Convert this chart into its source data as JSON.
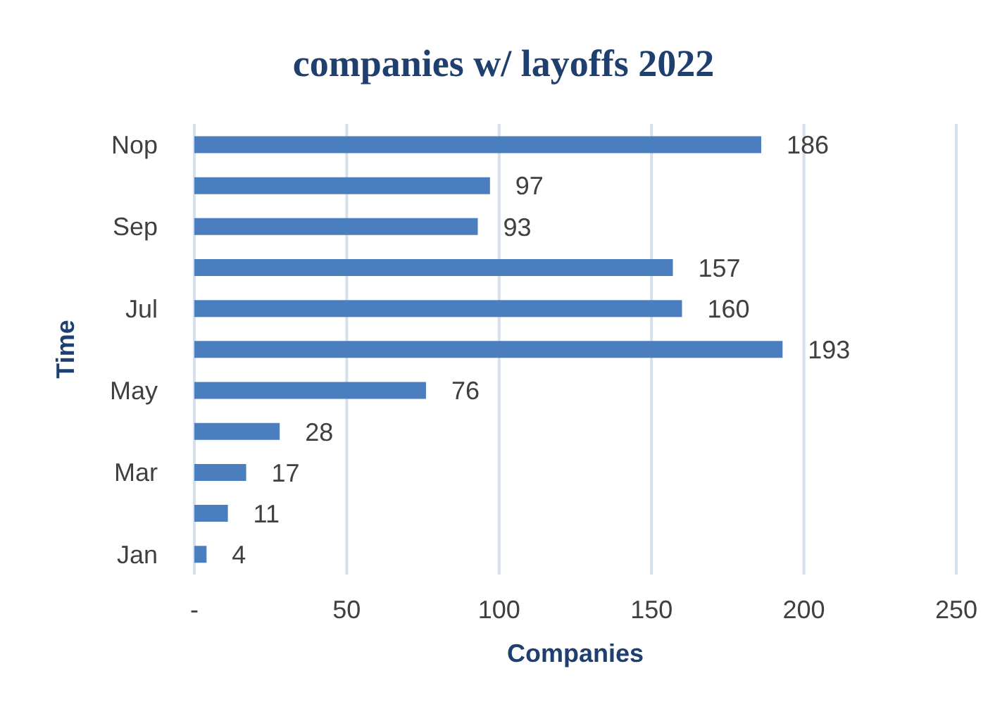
{
  "chart_data": {
    "type": "bar",
    "orientation": "horizontal",
    "title": "companies w/ layoffs 2022",
    "xlabel": "Companies",
    "ylabel": "Time",
    "categories": [
      "Nop",
      null,
      "Sep",
      null,
      "Jul",
      null,
      "May",
      null,
      "Mar",
      null,
      "Jan"
    ],
    "values": [
      186,
      97,
      93,
      157,
      160,
      193,
      76,
      28,
      17,
      11,
      4
    ],
    "color": "#4a7ebf",
    "xlim": [
      0,
      250
    ],
    "xticks": [
      {
        "value": 0,
        "label": "-"
      },
      50,
      100,
      150,
      200,
      250
    ],
    "grid": "x",
    "data_labels": true
  }
}
